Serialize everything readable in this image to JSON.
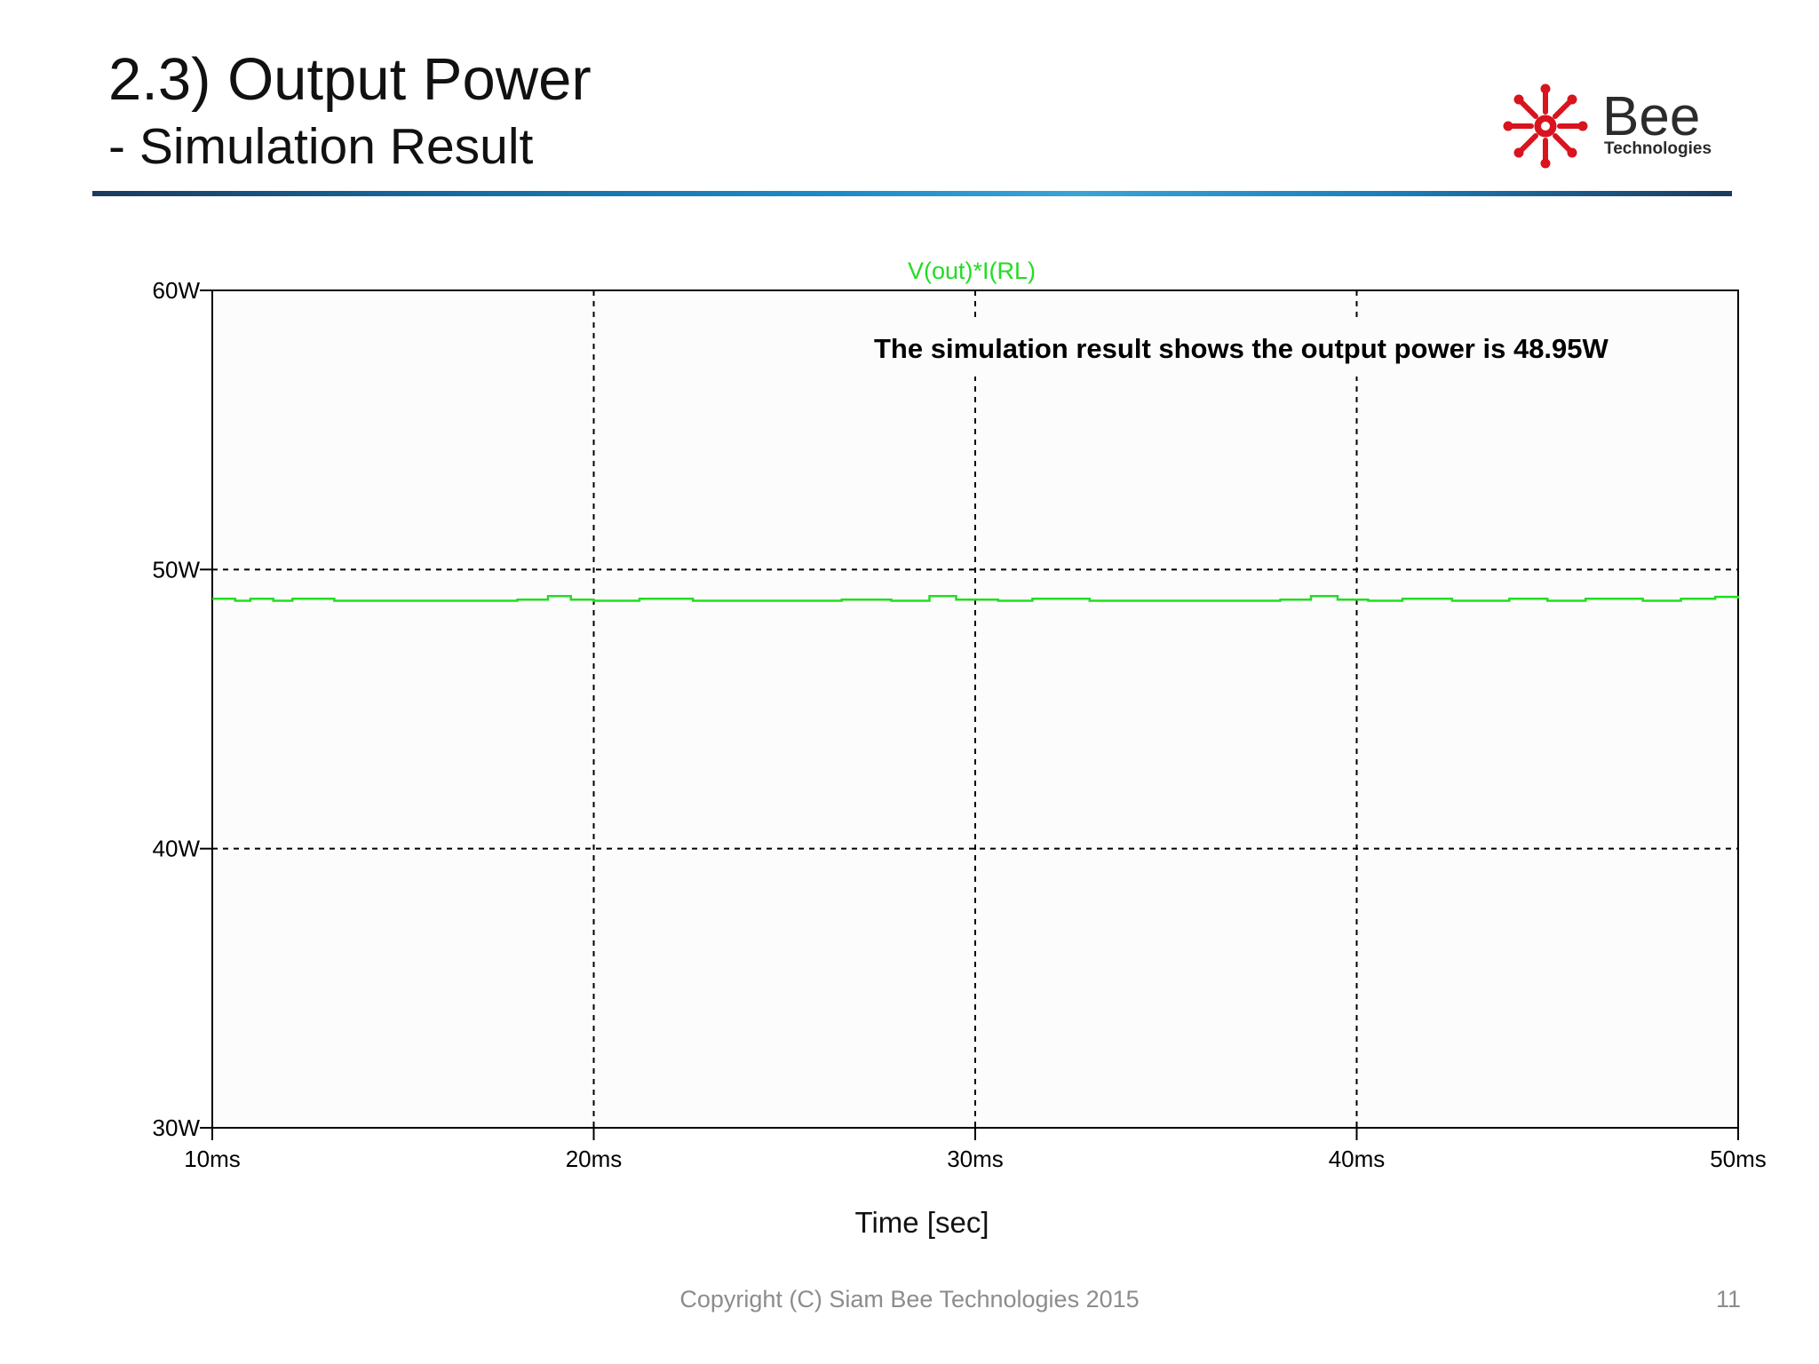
{
  "slide": {
    "title": "2.3) Output Power",
    "subtitle": "- Simulation Result",
    "x_axis_title": "Time [sec]",
    "footer": "Copyright (C) Siam Bee Technologies 2015",
    "page_number": "11",
    "logo": {
      "word": "Bee",
      "tagline": "Technologies",
      "icon": "starburst-icon",
      "color": "#d8141e"
    }
  },
  "colors": {
    "trace": "#22dd22",
    "axis": "#000000",
    "tick_text": "#000000"
  },
  "chart_data": {
    "type": "line",
    "title": "V(out)*I(RL)",
    "annotation": "The simulation result shows the output power is 48.95W",
    "x_ticks": [
      "10ms",
      "20ms",
      "30ms",
      "40ms",
      "50ms"
    ],
    "y_ticks": [
      "30W",
      "40W",
      "50W",
      "60W"
    ],
    "xlim": [
      10,
      50
    ],
    "ylim": [
      30,
      60
    ],
    "x_unit": "ms",
    "y_unit": "W",
    "grid": true,
    "series": [
      {
        "name": "V(out)*I(RL)",
        "x": [
          10,
          10.6,
          11.0,
          11.6,
          12.1,
          13.2,
          18.0,
          18.8,
          19.4,
          20.0,
          21.2,
          22.6,
          26.5,
          27.8,
          28.8,
          29.5,
          30.6,
          31.5,
          33.0,
          38.0,
          38.8,
          39.5,
          40.3,
          41.2,
          42.5,
          44.0,
          45.0,
          46.0,
          47.5,
          48.5,
          49.4,
          50
        ],
        "y": [
          48.95,
          48.88,
          48.95,
          48.88,
          48.95,
          48.88,
          48.92,
          49.05,
          48.92,
          48.88,
          48.95,
          48.88,
          48.92,
          48.88,
          49.05,
          48.92,
          48.88,
          48.95,
          48.88,
          48.92,
          49.05,
          48.92,
          48.88,
          48.95,
          48.88,
          48.95,
          48.88,
          48.95,
          48.88,
          48.95,
          49.02,
          48.95
        ]
      }
    ]
  }
}
